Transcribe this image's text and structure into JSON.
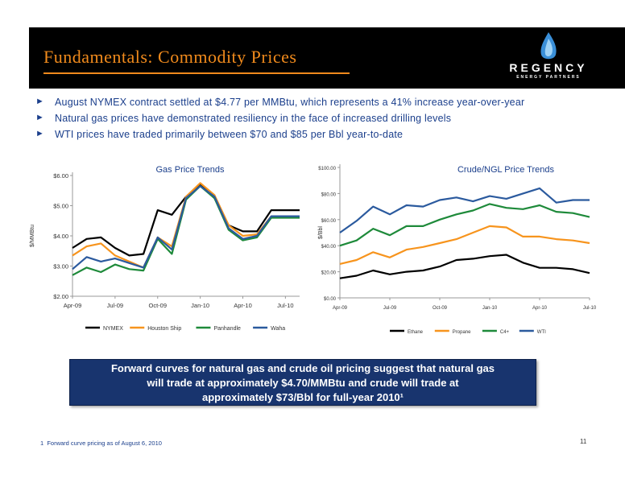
{
  "header": {
    "title": "Fundamentals: Commodity Prices",
    "logo_word": "REGENCY",
    "logo_sub": "ENERGY PARTNERS"
  },
  "bullets": [
    {
      "marker": "►",
      "text": "August NYMEX contract settled at $4.77 per MMBtu, which represents a 41% increase year-over-year"
    },
    {
      "marker": "►",
      "text": "Natural gas prices have demonstrated resiliency in the face of increased drilling levels"
    },
    {
      "marker": "►",
      "text": "WTI prices have traded primarily between $70 and $85 per Bbl year-to-date"
    }
  ],
  "chart_data": [
    {
      "type": "line",
      "title": "Gas Price Trends",
      "xlabel": "",
      "ylabel": "$/MMBtu",
      "ylim": [
        2.0,
        6.0
      ],
      "yticks": [
        2,
        3,
        4,
        5,
        6
      ],
      "ytick_labels": [
        "$2.00",
        "$3.00",
        "$4.00",
        "$5.00",
        "$6.00"
      ],
      "x_tick_labels": [
        "Apr-09",
        "Jul-09",
        "Oct-09",
        "Jan-10",
        "Apr-10",
        "Jul-10"
      ],
      "x_tick_indices": [
        0,
        3,
        6,
        9,
        12,
        15
      ],
      "points": 17,
      "grid": false,
      "legend": "bottom",
      "series": [
        {
          "name": "NYMEX",
          "color": "#000000",
          "values": [
            3.6,
            3.9,
            3.95,
            3.6,
            3.35,
            3.4,
            4.85,
            4.7,
            5.3,
            5.7,
            5.25,
            4.35,
            4.15,
            4.15,
            4.85,
            4.85,
            4.85
          ]
        },
        {
          "name": "Houston Ship",
          "color": "#f7941d",
          "values": [
            3.35,
            3.65,
            3.75,
            3.35,
            3.15,
            2.95,
            3.95,
            3.65,
            5.3,
            5.75,
            5.35,
            4.35,
            4.0,
            4.05,
            4.65,
            4.65,
            4.65
          ]
        },
        {
          "name": "Panhandle",
          "color": "#1e8a3a",
          "values": [
            2.7,
            2.95,
            2.8,
            3.05,
            2.9,
            2.85,
            3.9,
            3.4,
            5.2,
            5.65,
            5.25,
            4.2,
            3.85,
            3.95,
            4.6,
            4.6,
            4.6
          ]
        },
        {
          "name": "Waha",
          "color": "#2b5a9e",
          "values": [
            2.9,
            3.3,
            3.15,
            3.25,
            3.1,
            2.95,
            3.95,
            3.55,
            5.25,
            5.65,
            5.3,
            4.25,
            3.9,
            4.0,
            4.65,
            4.65,
            4.65
          ]
        }
      ]
    },
    {
      "type": "line",
      "title": "Crude/NGL Price Trends",
      "xlabel": "",
      "ylabel": "$/Bbl",
      "ylim": [
        0,
        100
      ],
      "yticks": [
        0,
        20,
        40,
        60,
        80,
        100
      ],
      "ytick_labels": [
        "$0.00",
        "$20.00",
        "$40.00",
        "$60.00",
        "$80.00",
        "$100.00"
      ],
      "x_tick_labels": [
        "Apr-09",
        "Jul-09",
        "Oct-09",
        "Jan-10",
        "Apr-10",
        "Jul-10"
      ],
      "x_tick_indices": [
        0,
        3,
        6,
        9,
        12,
        15
      ],
      "points": 16,
      "grid": false,
      "legend": "bottom",
      "series": [
        {
          "name": "Ethane",
          "color": "#000000",
          "values": [
            15,
            17,
            21,
            18,
            20,
            21,
            24,
            29,
            30,
            32,
            33,
            27,
            23,
            23,
            22,
            19
          ]
        },
        {
          "name": "Propane",
          "color": "#f7941d",
          "values": [
            26,
            29,
            35,
            31,
            37,
            39,
            42,
            45,
            50,
            55,
            54,
            47,
            47,
            45,
            44,
            42
          ]
        },
        {
          "name": "C4+",
          "color": "#1e8a3a",
          "values": [
            40,
            44,
            53,
            48,
            55,
            55,
            60,
            64,
            67,
            72,
            69,
            68,
            71,
            66,
            65,
            62
          ]
        },
        {
          "name": "WTI",
          "color": "#2b5a9e",
          "values": [
            50,
            59,
            70,
            64,
            71,
            70,
            75,
            77,
            74,
            78,
            76,
            80,
            84,
            73,
            75,
            75
          ]
        }
      ]
    }
  ],
  "callout": {
    "lines": [
      "Forward curves for natural gas and crude oil pricing suggest that natural gas",
      "will trade at approximately $4.70/MMBtu and crude will trade at",
      "approximately $73/Bbl for full-year 2010¹"
    ]
  },
  "footnote": {
    "marker": "1",
    "text": "Forward curve pricing as of August 6, 2010"
  },
  "page_number": "11"
}
